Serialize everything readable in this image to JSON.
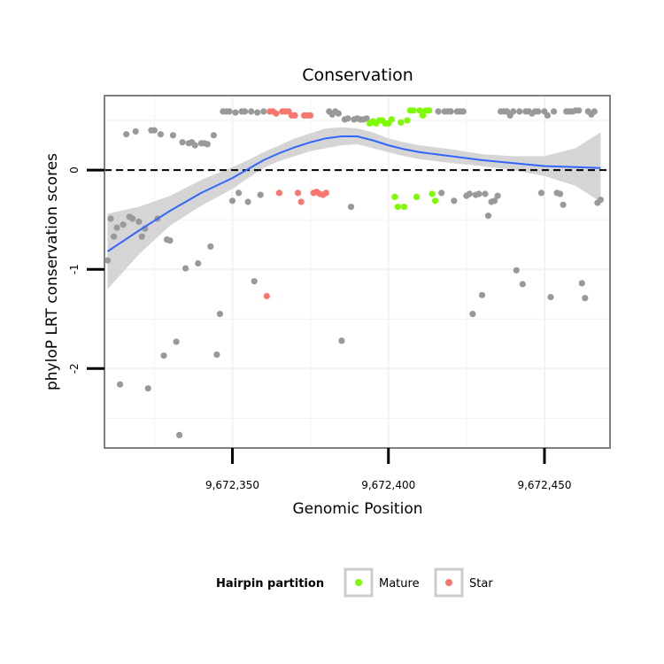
{
  "chart_data": {
    "type": "scatter",
    "title": "Conservation",
    "xlabel": "Genomic Position",
    "ylabel": "phyloP LRT conservation scores",
    "xlim": [
      9672309,
      9672471
    ],
    "ylim": [
      -2.8,
      0.75
    ],
    "x_ticks": [
      {
        "value": 9672350,
        "label": "9,672,350"
      },
      {
        "value": 9672400,
        "label": "9,672,400"
      },
      {
        "value": 9672450,
        "label": "9,672,450"
      }
    ],
    "y_ticks": [
      {
        "value": 0,
        "label": "0"
      },
      {
        "value": -1,
        "label": "-1"
      },
      {
        "value": -2,
        "label": "-2"
      }
    ],
    "reference_line": {
      "y": 0,
      "style": "dashed"
    },
    "grid": true,
    "legend": {
      "title": "Hairpin partition",
      "position": "bottom",
      "entries": [
        {
          "label": "Mature",
          "color": "#7CFC00"
        },
        {
          "label": "Star",
          "color": "#F8766D"
        }
      ]
    },
    "colors": {
      "other": "#999999",
      "mature": "#7CFC00",
      "star": "#F8766D",
      "smooth": "#3366FF",
      "ribbon": "#D5D5D5",
      "panel_border": "#808080"
    },
    "series": [
      {
        "group": "other",
        "points": [
          [
            9672310,
            -0.91
          ],
          [
            9672311,
            -0.49
          ],
          [
            9672312,
            -0.67
          ],
          [
            9672313,
            -0.58
          ],
          [
            9672314,
            -2.16
          ],
          [
            9672315,
            -0.55
          ],
          [
            9672316,
            0.36
          ],
          [
            9672317,
            -0.47
          ],
          [
            9672318,
            -0.49
          ],
          [
            9672319,
            0.39
          ],
          [
            9672320,
            -0.52
          ],
          [
            9672321,
            -0.67
          ],
          [
            9672322,
            -0.59
          ],
          [
            9672323,
            -2.2
          ],
          [
            9672324,
            0.4
          ],
          [
            9672325,
            0.4
          ],
          [
            9672326,
            -0.49
          ],
          [
            9672327,
            0.36
          ],
          [
            9672328,
            -1.87
          ],
          [
            9672329,
            -0.7
          ],
          [
            9672330,
            -0.71
          ],
          [
            9672331,
            0.35
          ],
          [
            9672332,
            -1.73
          ],
          [
            9672333,
            -2.67
          ],
          [
            9672334,
            0.28
          ],
          [
            9672335,
            -0.99
          ],
          [
            9672336,
            0.27
          ],
          [
            9672337,
            0.28
          ],
          [
            9672338,
            0.25
          ],
          [
            9672339,
            -0.94
          ],
          [
            9672340,
            0.27
          ],
          [
            9672341,
            0.27
          ],
          [
            9672342,
            0.26
          ],
          [
            9672343,
            -0.77
          ],
          [
            9672344,
            0.35
          ],
          [
            9672345,
            -1.86
          ],
          [
            9672346,
            -1.45
          ],
          [
            9672347,
            0.59
          ],
          [
            9672348,
            0.59
          ],
          [
            9672349,
            0.59
          ],
          [
            9672350,
            -0.31
          ],
          [
            9672351,
            0.58
          ],
          [
            9672352,
            -0.23
          ],
          [
            9672353,
            0.59
          ],
          [
            9672354,
            0.59
          ],
          [
            9672355,
            -0.32
          ],
          [
            9672356,
            0.59
          ],
          [
            9672357,
            -1.12
          ],
          [
            9672358,
            0.58
          ],
          [
            9672359,
            -0.25
          ],
          [
            9672360,
            0.59
          ],
          [
            9672381,
            0.59
          ],
          [
            9672382,
            0.56
          ],
          [
            9672383,
            0.59
          ],
          [
            9672384,
            0.57
          ],
          [
            9672385,
            -1.72
          ],
          [
            9672386,
            0.51
          ],
          [
            9672387,
            0.52
          ],
          [
            9672388,
            -0.37
          ],
          [
            9672389,
            0.51
          ],
          [
            9672390,
            0.52
          ],
          [
            9672391,
            0.51
          ],
          [
            9672392,
            0.51
          ],
          [
            9672393,
            0.52
          ],
          [
            9672416,
            0.59
          ],
          [
            9672417,
            -0.23
          ],
          [
            9672418,
            0.59
          ],
          [
            9672419,
            0.59
          ],
          [
            9672420,
            0.59
          ],
          [
            9672421,
            -0.31
          ],
          [
            9672422,
            0.59
          ],
          [
            9672423,
            0.59
          ],
          [
            9672424,
            0.59
          ],
          [
            9672425,
            -0.26
          ],
          [
            9672426,
            -0.24
          ],
          [
            9672427,
            -1.45
          ],
          [
            9672428,
            -0.25
          ],
          [
            9672429,
            -0.24
          ],
          [
            9672430,
            -1.26
          ],
          [
            9672431,
            -0.24
          ],
          [
            9672432,
            -0.46
          ],
          [
            9672433,
            -0.32
          ],
          [
            9672434,
            -0.31
          ],
          [
            9672435,
            -0.26
          ],
          [
            9672436,
            0.59
          ],
          [
            9672437,
            0.59
          ],
          [
            9672438,
            0.59
          ],
          [
            9672439,
            0.55
          ],
          [
            9672440,
            0.59
          ],
          [
            9672441,
            -1.01
          ],
          [
            9672442,
            0.59
          ],
          [
            9672443,
            -1.15
          ],
          [
            9672444,
            0.59
          ],
          [
            9672445,
            0.59
          ],
          [
            9672446,
            0.57
          ],
          [
            9672447,
            0.59
          ],
          [
            9672448,
            0.59
          ],
          [
            9672449,
            -0.23
          ],
          [
            9672450,
            0.59
          ],
          [
            9672451,
            0.55
          ],
          [
            9672452,
            -1.28
          ],
          [
            9672453,
            0.59
          ],
          [
            9672454,
            -0.23
          ],
          [
            9672455,
            -0.24
          ],
          [
            9672456,
            -0.35
          ],
          [
            9672457,
            0.59
          ],
          [
            9672458,
            0.59
          ],
          [
            9672459,
            0.59
          ],
          [
            9672460,
            0.6
          ],
          [
            9672461,
            0.6
          ],
          [
            9672462,
            -1.14
          ],
          [
            9672463,
            -1.29
          ],
          [
            9672464,
            0.59
          ],
          [
            9672465,
            0.56
          ],
          [
            9672466,
            0.59
          ],
          [
            9672467,
            -0.33
          ],
          [
            9672468,
            -0.3
          ]
        ]
      },
      {
        "group": "star",
        "points": [
          [
            9672361,
            -1.27
          ],
          [
            9672362,
            0.59
          ],
          [
            9672363,
            0.59
          ],
          [
            9672364,
            0.57
          ],
          [
            9672365,
            -0.23
          ],
          [
            9672366,
            0.59
          ],
          [
            9672367,
            0.59
          ],
          [
            9672368,
            0.59
          ],
          [
            9672369,
            0.55
          ],
          [
            9672370,
            0.55
          ],
          [
            9672371,
            -0.23
          ],
          [
            9672372,
            -0.32
          ],
          [
            9672373,
            0.55
          ],
          [
            9672374,
            0.55
          ],
          [
            9672375,
            0.55
          ],
          [
            9672376,
            -0.23
          ],
          [
            9672377,
            -0.22
          ],
          [
            9672378,
            -0.24
          ],
          [
            9672379,
            -0.25
          ],
          [
            9672380,
            -0.23
          ]
        ]
      },
      {
        "group": "mature",
        "points": [
          [
            9672394,
            0.47
          ],
          [
            9672395,
            0.49
          ],
          [
            9672396,
            0.47
          ],
          [
            9672397,
            0.5
          ],
          [
            9672398,
            0.5
          ],
          [
            9672399,
            0.47
          ],
          [
            9672400,
            0.47
          ],
          [
            9672401,
            0.51
          ],
          [
            9672402,
            -0.27
          ],
          [
            9672403,
            -0.37
          ],
          [
            9672404,
            0.48
          ],
          [
            9672405,
            -0.37
          ],
          [
            9672406,
            0.5
          ],
          [
            9672407,
            0.6
          ],
          [
            9672408,
            0.6
          ],
          [
            9672409,
            -0.27
          ],
          [
            9672410,
            0.6
          ],
          [
            9672411,
            0.55
          ],
          [
            9672412,
            0.6
          ],
          [
            9672413,
            0.6
          ],
          [
            9672414,
            -0.24
          ],
          [
            9672415,
            -0.31
          ]
        ]
      }
    ],
    "smooth": {
      "x": [
        9672310,
        9672320,
        9672330,
        9672340,
        9672350,
        9672355,
        9672360,
        9672365,
        9672370,
        9672375,
        9672380,
        9672385,
        9672390,
        9672395,
        9672400,
        9672405,
        9672410,
        9672415,
        9672420,
        9672430,
        9672440,
        9672450,
        9672460,
        9672468
      ],
      "y": [
        -0.82,
        -0.61,
        -0.41,
        -0.23,
        -0.08,
        0.01,
        0.1,
        0.17,
        0.23,
        0.28,
        0.32,
        0.34,
        0.34,
        0.3,
        0.25,
        0.21,
        0.18,
        0.16,
        0.14,
        0.1,
        0.07,
        0.04,
        0.03,
        0.02
      ],
      "lower": [
        -1.2,
        -0.85,
        -0.56,
        -0.36,
        -0.19,
        -0.08,
        0.02,
        0.09,
        0.14,
        0.19,
        0.22,
        0.25,
        0.26,
        0.22,
        0.18,
        0.14,
        0.11,
        0.09,
        0.07,
        0.04,
        0.0,
        -0.06,
        -0.16,
        -0.32
      ],
      "upper": [
        -0.44,
        -0.37,
        -0.26,
        -0.1,
        0.03,
        0.1,
        0.18,
        0.25,
        0.32,
        0.37,
        0.42,
        0.43,
        0.42,
        0.38,
        0.32,
        0.28,
        0.25,
        0.23,
        0.21,
        0.16,
        0.14,
        0.14,
        0.22,
        0.38
      ]
    }
  }
}
